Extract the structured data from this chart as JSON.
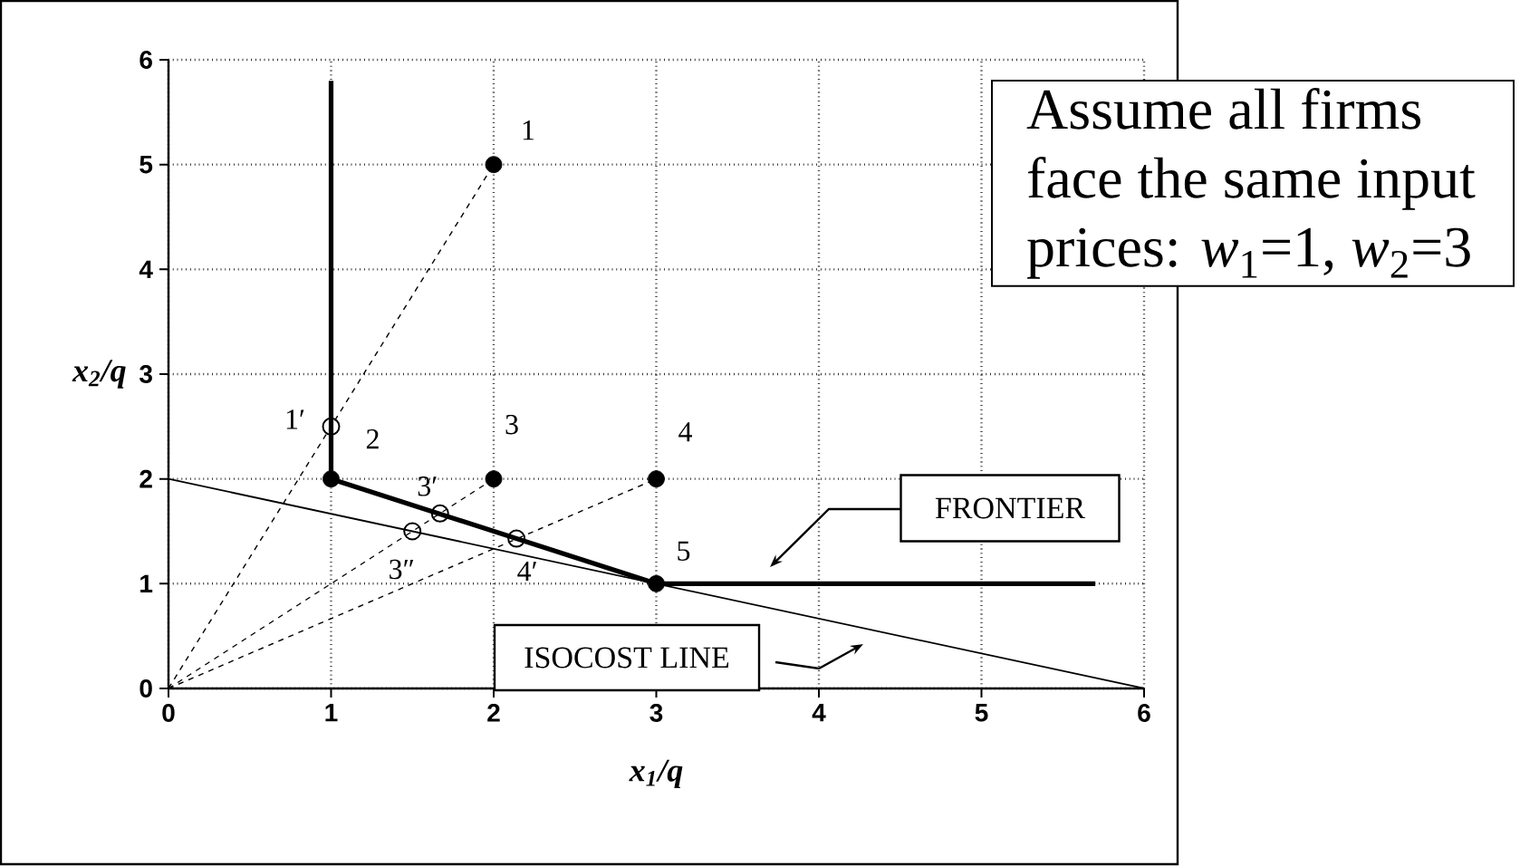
{
  "chart_data": {
    "type": "scatter",
    "xlabel": "x$_{1}$/q",
    "ylabel": "x$_{2}$/q",
    "xlim": [
      0,
      6
    ],
    "ylim": [
      0,
      6
    ],
    "xticks": [
      0,
      1,
      2,
      3,
      4,
      5,
      6
    ],
    "yticks": [
      0,
      1,
      2,
      3,
      4,
      5,
      6
    ],
    "grid": true,
    "series": [
      {
        "type": "line",
        "color": "#000000",
        "line_style": "solid",
        "marker": "none",
        "x": [
          1,
          1,
          3,
          5.7
        ],
        "values": [
          5.8,
          2,
          1,
          1
        ]
      },
      {
        "type": "line",
        "color": "#000000",
        "line_style": "solid",
        "marker": "none",
        "x": [
          0,
          6
        ],
        "values": [
          2,
          0
        ]
      },
      {
        "type": "line",
        "color": "#000000",
        "line_style": "dashed",
        "marker": "none",
        "x": [
          0,
          2
        ],
        "values": [
          0,
          5
        ]
      },
      {
        "type": "line",
        "color": "#000000",
        "line_style": "dashed",
        "marker": "none",
        "x": [
          0,
          2
        ],
        "values": [
          0,
          2
        ]
      },
      {
        "type": "line",
        "color": "#000000",
        "line_style": "dashed",
        "marker": "none",
        "x": [
          0,
          3
        ],
        "values": [
          0,
          2
        ]
      },
      {
        "color": "#000000",
        "marker": "circle",
        "x": [
          2,
          1,
          2,
          3,
          3
        ],
        "values": [
          5,
          2,
          2,
          2,
          1
        ]
      },
      {
        "color": "#000000",
        "marker": "circle",
        "x": [
          1,
          1.67,
          1.5,
          2.14
        ],
        "values": [
          2.5,
          1.67,
          1.5,
          1.43
        ]
      }
    ],
    "annotations": [
      {
        "text": "1",
        "x": 2,
        "y": 5
      },
      {
        "text": "1′",
        "x": 1,
        "y": 2.5
      },
      {
        "text": "2",
        "x": 1,
        "y": 2
      },
      {
        "text": "3",
        "x": 2,
        "y": 2
      },
      {
        "text": "4",
        "x": 3,
        "y": 2
      },
      {
        "text": "5",
        "x": 3,
        "y": 1
      },
      {
        "text": "3′",
        "x": 1.67,
        "y": 1.67
      },
      {
        "text": "3″",
        "x": 1.5,
        "y": 1.5
      },
      {
        "text": "4′",
        "x": 2.14,
        "y": 1.43
      },
      "FRONTIER",
      "ISOCOST LINE",
      "Assume all firms face the same input prices: *w*$_{1}$=1, *w*$_{2}$=3"
    ]
  }
}
